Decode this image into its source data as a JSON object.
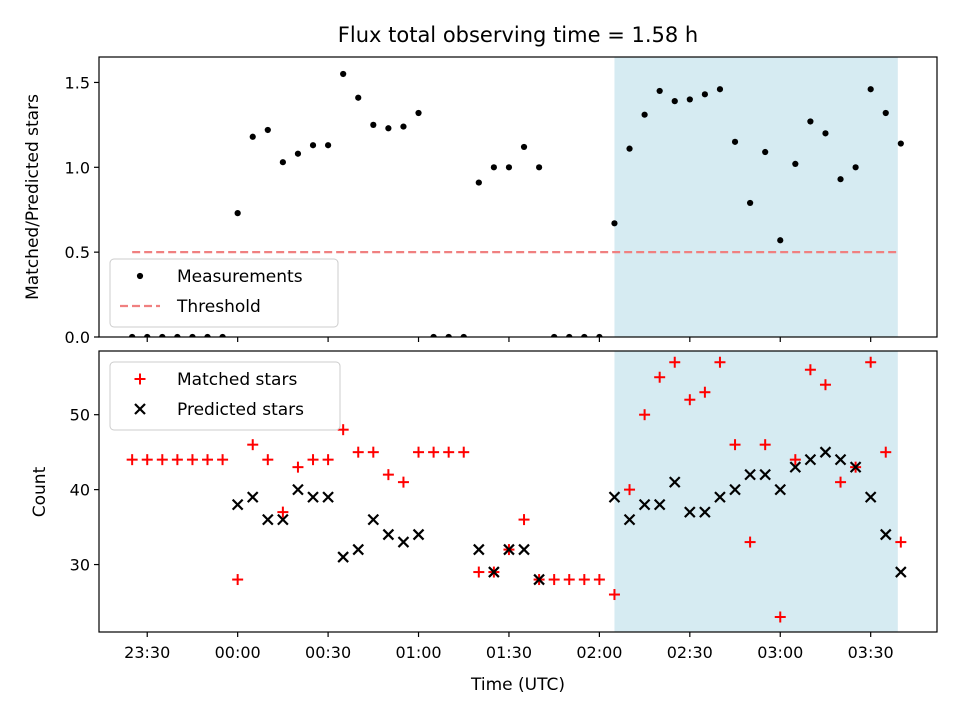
{
  "chart_data": [
    {
      "type": "scatter",
      "title": "Flux total observing time = 1.58 h",
      "xlabel": "",
      "ylabel": "Matched/Predicted stars",
      "ylim": [
        0,
        1.65
      ],
      "yticks": [
        "0.0",
        "0.5",
        "1.0",
        "1.5"
      ],
      "ytick_values": [
        0,
        0.5,
        1.0,
        1.5
      ],
      "x_unit": "UTC time (hh:mm)",
      "xlim": [
        "23:14",
        "03:52"
      ],
      "highlight_span": {
        "from": "02:05",
        "to": "03:39",
        "color": "#add8e6"
      },
      "legend": {
        "position": "lower-left",
        "entries": [
          "Measurements",
          "Threshold"
        ]
      },
      "series": [
        {
          "name": "Measurements",
          "marker": "dot",
          "color": "#000000",
          "points": [
            [
              "23:25",
              0.0
            ],
            [
              "23:30",
              0.0
            ],
            [
              "23:35",
              0.0
            ],
            [
              "23:40",
              0.0
            ],
            [
              "23:45",
              0.0
            ],
            [
              "23:50",
              0.0
            ],
            [
              "23:55",
              0.0
            ],
            [
              "00:00",
              0.73
            ],
            [
              "00:05",
              1.18
            ],
            [
              "00:10",
              1.22
            ],
            [
              "00:15",
              1.03
            ],
            [
              "00:20",
              1.08
            ],
            [
              "00:25",
              1.13
            ],
            [
              "00:30",
              1.13
            ],
            [
              "00:35",
              1.55
            ],
            [
              "00:40",
              1.41
            ],
            [
              "00:45",
              1.25
            ],
            [
              "00:50",
              1.23
            ],
            [
              "00:55",
              1.24
            ],
            [
              "01:00",
              1.32
            ],
            [
              "01:05",
              0.0
            ],
            [
              "01:10",
              0.0
            ],
            [
              "01:15",
              0.0
            ],
            [
              "01:20",
              0.91
            ],
            [
              "01:25",
              1.0
            ],
            [
              "01:30",
              1.0
            ],
            [
              "01:35",
              1.12
            ],
            [
              "01:40",
              1.0
            ],
            [
              "01:45",
              0.0
            ],
            [
              "01:50",
              0.0
            ],
            [
              "01:55",
              0.0
            ],
            [
              "02:00",
              0.0
            ],
            [
              "02:05",
              0.67
            ],
            [
              "02:10",
              1.11
            ],
            [
              "02:15",
              1.31
            ],
            [
              "02:20",
              1.45
            ],
            [
              "02:25",
              1.39
            ],
            [
              "02:30",
              1.4
            ],
            [
              "02:35",
              1.43
            ],
            [
              "02:40",
              1.46
            ],
            [
              "02:45",
              1.15
            ],
            [
              "02:50",
              0.79
            ],
            [
              "02:55",
              1.09
            ],
            [
              "03:00",
              0.57
            ],
            [
              "03:05",
              1.02
            ],
            [
              "03:10",
              1.27
            ],
            [
              "03:15",
              1.2
            ],
            [
              "03:20",
              0.93
            ],
            [
              "03:25",
              1.0
            ],
            [
              "03:30",
              1.46
            ],
            [
              "03:35",
              1.32
            ],
            [
              "03:40",
              1.14
            ]
          ]
        },
        {
          "name": "Threshold",
          "style": "dashed-line",
          "color": "#f08080",
          "points": [
            [
              "23:25",
              0.5
            ],
            [
              "03:39",
              0.5
            ]
          ]
        }
      ]
    },
    {
      "type": "scatter",
      "title": "",
      "xlabel": "Time (UTC)",
      "ylabel": "Count",
      "ylim": [
        21,
        58.5
      ],
      "yticks": [
        "30",
        "40",
        "50"
      ],
      "ytick_values": [
        30,
        40,
        50
      ],
      "x_unit": "UTC time (hh:mm)",
      "xlim": [
        "23:14",
        "03:52"
      ],
      "xticks": [
        "23:30",
        "00:00",
        "00:30",
        "01:00",
        "01:30",
        "02:00",
        "02:30",
        "03:00",
        "03:30"
      ],
      "highlight_span": {
        "from": "02:05",
        "to": "03:39",
        "color": "#add8e6"
      },
      "legend": {
        "position": "upper-left",
        "entries": [
          "Matched stars",
          "Predicted stars"
        ]
      },
      "series": [
        {
          "name": "Matched stars",
          "marker": "plus",
          "color": "#ff0000",
          "points": [
            [
              "23:25",
              44
            ],
            [
              "23:30",
              44
            ],
            [
              "23:35",
              44
            ],
            [
              "23:40",
              44
            ],
            [
              "23:45",
              44
            ],
            [
              "23:50",
              44
            ],
            [
              "23:55",
              44
            ],
            [
              "00:00",
              28
            ],
            [
              "00:05",
              46
            ],
            [
              "00:10",
              44
            ],
            [
              "00:15",
              37
            ],
            [
              "00:20",
              43
            ],
            [
              "00:25",
              44
            ],
            [
              "00:30",
              44
            ],
            [
              "00:35",
              48
            ],
            [
              "00:40",
              45
            ],
            [
              "00:45",
              45
            ],
            [
              "00:50",
              42
            ],
            [
              "00:55",
              41
            ],
            [
              "01:00",
              45
            ],
            [
              "01:05",
              45
            ],
            [
              "01:10",
              45
            ],
            [
              "01:15",
              45
            ],
            [
              "01:20",
              29
            ],
            [
              "01:25",
              29
            ],
            [
              "01:30",
              32
            ],
            [
              "01:35",
              36
            ],
            [
              "01:40",
              28
            ],
            [
              "01:45",
              28
            ],
            [
              "01:50",
              28
            ],
            [
              "01:55",
              28
            ],
            [
              "02:00",
              28
            ],
            [
              "02:05",
              26
            ],
            [
              "02:10",
              40
            ],
            [
              "02:15",
              50
            ],
            [
              "02:20",
              55
            ],
            [
              "02:25",
              57
            ],
            [
              "02:30",
              52
            ],
            [
              "02:35",
              53
            ],
            [
              "02:40",
              57
            ],
            [
              "02:45",
              46
            ],
            [
              "02:50",
              33
            ],
            [
              "02:55",
              46
            ],
            [
              "03:00",
              23
            ],
            [
              "03:05",
              44
            ],
            [
              "03:10",
              56
            ],
            [
              "03:15",
              54
            ],
            [
              "03:20",
              41
            ],
            [
              "03:25",
              43
            ],
            [
              "03:30",
              57
            ],
            [
              "03:35",
              45
            ],
            [
              "03:40",
              33
            ]
          ]
        },
        {
          "name": "Predicted stars",
          "marker": "x",
          "color": "#000000",
          "points": [
            [
              "00:00",
              38
            ],
            [
              "00:05",
              39
            ],
            [
              "00:10",
              36
            ],
            [
              "00:15",
              36
            ],
            [
              "00:20",
              40
            ],
            [
              "00:25",
              39
            ],
            [
              "00:30",
              39
            ],
            [
              "00:35",
              31
            ],
            [
              "00:40",
              32
            ],
            [
              "00:45",
              36
            ],
            [
              "00:50",
              34
            ],
            [
              "00:55",
              33
            ],
            [
              "01:00",
              34
            ],
            [
              "01:20",
              32
            ],
            [
              "01:25",
              29
            ],
            [
              "01:30",
              32
            ],
            [
              "01:35",
              32
            ],
            [
              "01:40",
              28
            ],
            [
              "02:05",
              39
            ],
            [
              "02:10",
              36
            ],
            [
              "02:15",
              38
            ],
            [
              "02:20",
              38
            ],
            [
              "02:25",
              41
            ],
            [
              "02:30",
              37
            ],
            [
              "02:35",
              37
            ],
            [
              "02:40",
              39
            ],
            [
              "02:45",
              40
            ],
            [
              "02:50",
              42
            ],
            [
              "02:55",
              42
            ],
            [
              "03:00",
              40
            ],
            [
              "03:05",
              43
            ],
            [
              "03:10",
              44
            ],
            [
              "03:15",
              45
            ],
            [
              "03:20",
              44
            ],
            [
              "03:25",
              43
            ],
            [
              "03:30",
              39
            ],
            [
              "03:35",
              34
            ],
            [
              "03:40",
              29
            ]
          ]
        }
      ]
    }
  ]
}
